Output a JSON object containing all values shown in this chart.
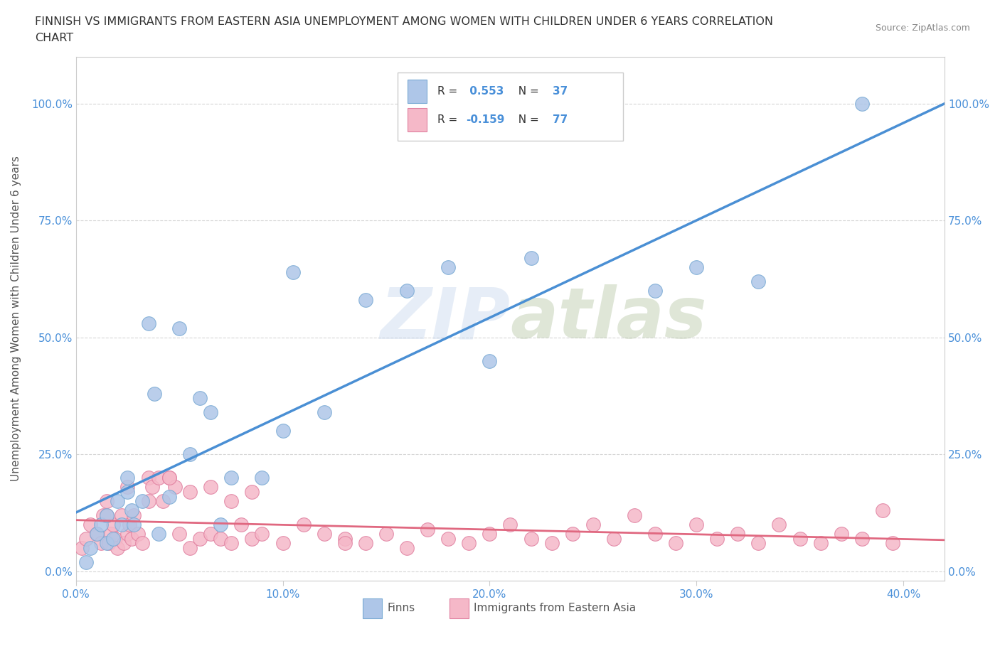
{
  "title_line1": "FINNISH VS IMMIGRANTS FROM EASTERN ASIA UNEMPLOYMENT AMONG WOMEN WITH CHILDREN UNDER 6 YEARS CORRELATION",
  "title_line2": "CHART",
  "source": "Source: ZipAtlas.com",
  "ylabel": "Unemployment Among Women with Children Under 6 years",
  "xlim": [
    0.0,
    0.42
  ],
  "ylim": [
    -0.02,
    1.1
  ],
  "xticks": [
    0.0,
    0.1,
    0.2,
    0.3,
    0.4
  ],
  "xtick_labels": [
    "0.0%",
    "10.0%",
    "20.0%",
    "30.0%",
    "40.0%"
  ],
  "ytick_labels": [
    "0.0%",
    "25.0%",
    "50.0%",
    "75.0%",
    "100.0%"
  ],
  "yticks": [
    0.0,
    0.25,
    0.5,
    0.75,
    1.0
  ],
  "blue_color": "#aec6e8",
  "blue_edge": "#7aaad4",
  "pink_color": "#f5b8c8",
  "pink_edge": "#e080a0",
  "blue_line_color": "#4a8fd4",
  "pink_line_color": "#e06880",
  "watermark": "ZIPatlas",
  "legend_label1": "Finns",
  "legend_label2": "Immigrants from Eastern Asia",
  "blue_x": [
    0.005,
    0.007,
    0.01,
    0.012,
    0.015,
    0.015,
    0.018,
    0.02,
    0.022,
    0.025,
    0.025,
    0.027,
    0.028,
    0.032,
    0.035,
    0.038,
    0.04,
    0.045,
    0.05,
    0.055,
    0.06,
    0.065,
    0.07,
    0.075,
    0.09,
    0.1,
    0.105,
    0.12,
    0.14,
    0.16,
    0.18,
    0.2,
    0.22,
    0.28,
    0.3,
    0.33,
    0.38
  ],
  "blue_y": [
    0.02,
    0.05,
    0.08,
    0.1,
    0.06,
    0.12,
    0.07,
    0.15,
    0.1,
    0.17,
    0.2,
    0.13,
    0.1,
    0.15,
    0.53,
    0.38,
    0.08,
    0.16,
    0.52,
    0.25,
    0.37,
    0.34,
    0.1,
    0.2,
    0.2,
    0.3,
    0.64,
    0.34,
    0.58,
    0.6,
    0.65,
    0.45,
    0.67,
    0.6,
    0.65,
    0.62,
    1.0
  ],
  "pink_x": [
    0.003,
    0.005,
    0.007,
    0.01,
    0.012,
    0.013,
    0.015,
    0.016,
    0.017,
    0.018,
    0.019,
    0.02,
    0.022,
    0.023,
    0.025,
    0.026,
    0.027,
    0.028,
    0.03,
    0.032,
    0.035,
    0.037,
    0.04,
    0.042,
    0.045,
    0.048,
    0.05,
    0.055,
    0.06,
    0.065,
    0.07,
    0.075,
    0.08,
    0.085,
    0.09,
    0.1,
    0.11,
    0.12,
    0.13,
    0.14,
    0.15,
    0.16,
    0.17,
    0.18,
    0.19,
    0.2,
    0.21,
    0.22,
    0.23,
    0.24,
    0.25,
    0.26,
    0.27,
    0.28,
    0.29,
    0.3,
    0.31,
    0.32,
    0.33,
    0.34,
    0.35,
    0.36,
    0.37,
    0.38,
    0.39,
    0.395,
    0.015,
    0.025,
    0.035,
    0.045,
    0.055,
    0.065,
    0.075,
    0.085,
    0.13
  ],
  "pink_y": [
    0.05,
    0.07,
    0.1,
    0.08,
    0.06,
    0.12,
    0.15,
    0.06,
    0.08,
    0.1,
    0.07,
    0.05,
    0.12,
    0.06,
    0.08,
    0.1,
    0.07,
    0.12,
    0.08,
    0.06,
    0.2,
    0.18,
    0.2,
    0.15,
    0.2,
    0.18,
    0.08,
    0.05,
    0.07,
    0.08,
    0.07,
    0.06,
    0.1,
    0.07,
    0.08,
    0.06,
    0.1,
    0.08,
    0.07,
    0.06,
    0.08,
    0.05,
    0.09,
    0.07,
    0.06,
    0.08,
    0.1,
    0.07,
    0.06,
    0.08,
    0.1,
    0.07,
    0.12,
    0.08,
    0.06,
    0.1,
    0.07,
    0.08,
    0.06,
    0.1,
    0.07,
    0.06,
    0.08,
    0.07,
    0.13,
    0.06,
    0.12,
    0.18,
    0.15,
    0.2,
    0.17,
    0.18,
    0.15,
    0.17,
    0.06
  ]
}
